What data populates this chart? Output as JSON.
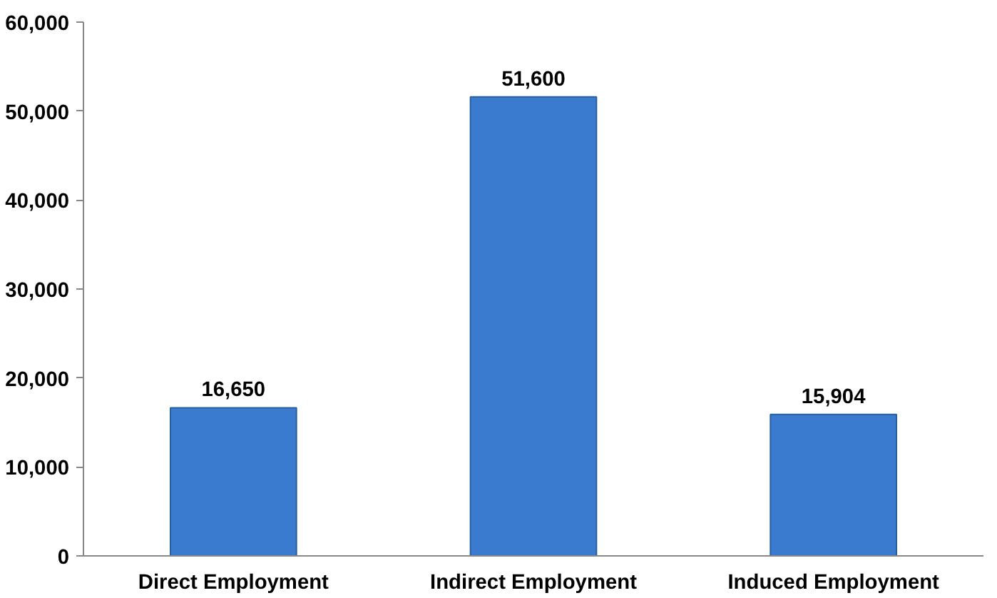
{
  "chart_data": {
    "type": "bar",
    "categories": [
      "Direct Employment",
      "Indirect Employment",
      "Induced Employment"
    ],
    "values": [
      16650,
      51600,
      15904
    ],
    "color": "#3b7bcf",
    "ylim": [
      0,
      60000
    ],
    "yticks": [
      {
        "value": 0,
        "label": "0"
      },
      {
        "value": 10000,
        "label": "10,000"
      },
      {
        "value": 20000,
        "label": "20,000"
      },
      {
        "value": 30000,
        "label": "30,000"
      },
      {
        "value": 40000,
        "label": "40,000"
      },
      {
        "value": 50000,
        "label": "50,000"
      },
      {
        "value": 60000,
        "label": "60,000"
      }
    ],
    "value_labels": [
      "16,650",
      "51,600",
      "15,904"
    ],
    "grid": false
  }
}
